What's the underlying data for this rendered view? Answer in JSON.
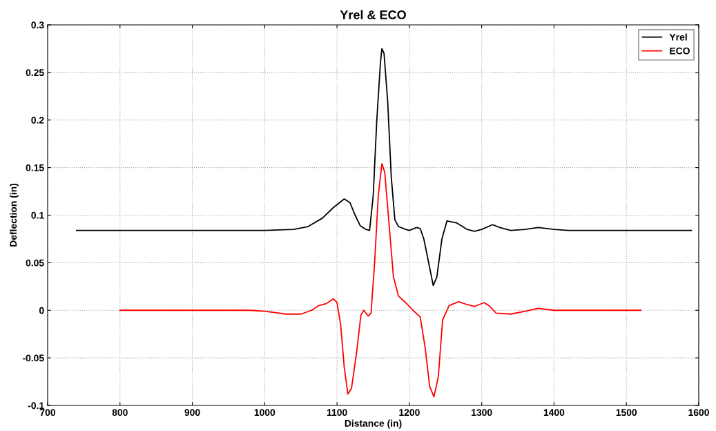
{
  "chart_data": {
    "type": "line",
    "title": "Yrel & ECO",
    "xlabel": "Distance (in)",
    "ylabel": "Deflection (in)",
    "xlim": [
      700,
      1600
    ],
    "xticks": [
      700,
      800,
      900,
      1000,
      1100,
      1200,
      1300,
      1400,
      1500,
      1600
    ],
    "ylim": [
      -0.1,
      0.3
    ],
    "yticks": [
      -0.1,
      -0.05,
      0,
      0.05,
      0.1,
      0.15,
      0.2,
      0.25,
      0.3
    ],
    "grid": true,
    "legend": "top right",
    "marker": "none",
    "line_style": "solid",
    "series": [
      {
        "name": "Yrel",
        "color": "#000000",
        "x": [
          740,
          1000,
          1040,
          1060,
          1080,
          1095,
          1110,
          1118,
          1125,
          1132,
          1140,
          1145,
          1150,
          1155,
          1160,
          1162,
          1165,
          1170,
          1175,
          1180,
          1185,
          1195,
          1200,
          1210,
          1215,
          1220,
          1228,
          1233,
          1238,
          1245,
          1252,
          1265,
          1280,
          1290,
          1300,
          1315,
          1325,
          1340,
          1360,
          1378,
          1400,
          1420,
          1590
        ],
        "values": [
          0.084,
          0.084,
          0.085,
          0.088,
          0.097,
          0.108,
          0.117,
          0.113,
          0.1,
          0.089,
          0.085,
          0.084,
          0.12,
          0.2,
          0.26,
          0.275,
          0.27,
          0.22,
          0.14,
          0.095,
          0.088,
          0.085,
          0.084,
          0.087,
          0.086,
          0.075,
          0.045,
          0.026,
          0.035,
          0.075,
          0.094,
          0.092,
          0.085,
          0.083,
          0.085,
          0.09,
          0.087,
          0.084,
          0.085,
          0.087,
          0.085,
          0.084,
          0.084
        ]
      },
      {
        "name": "ECO",
        "color": "#ff0000",
        "x": [
          800,
          980,
          1000,
          1030,
          1050,
          1065,
          1075,
          1085,
          1095,
          1100,
          1105,
          1110,
          1115,
          1120,
          1127,
          1133,
          1137,
          1143,
          1147,
          1152,
          1157,
          1162,
          1166,
          1172,
          1178,
          1185,
          1195,
          1205,
          1215,
          1222,
          1228,
          1234,
          1240,
          1246,
          1255,
          1268,
          1280,
          1290,
          1303,
          1310,
          1320,
          1340,
          1360,
          1378,
          1400,
          1520
        ],
        "values": [
          0,
          0,
          -0.001,
          -0.004,
          -0.004,
          0,
          0.005,
          0.007,
          0.012,
          0.008,
          -0.015,
          -0.06,
          -0.088,
          -0.082,
          -0.045,
          -0.005,
          0,
          -0.006,
          -0.003,
          0.05,
          0.12,
          0.154,
          0.145,
          0.09,
          0.035,
          0.015,
          0.008,
          0,
          -0.007,
          -0.04,
          -0.08,
          -0.091,
          -0.07,
          -0.01,
          0.005,
          0.009,
          0.006,
          0.004,
          0.008,
          0.005,
          -0.003,
          -0.004,
          -0.001,
          0.002,
          0,
          0
        ]
      }
    ]
  }
}
